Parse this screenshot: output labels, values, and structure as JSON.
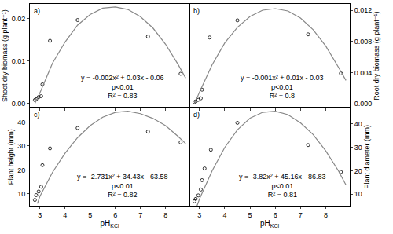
{
  "chart_data": [
    {
      "type": "scatter",
      "panel": "a)",
      "ylabel": "Shoot dry biomass (g plant⁻¹)",
      "xlim": [
        2.6,
        8.95
      ],
      "xticks": [
        3,
        4,
        5,
        6,
        7,
        8
      ],
      "tick_labels": "y",
      "ylim": [
        -0.001,
        0.0235
      ],
      "yticks": [
        {
          "value": 0,
          "label": "0.00"
        },
        0.01,
        0.02
      ],
      "grid": false,
      "annotations": [
        "y = -0.002x² + 0.03x - 0.06",
        "p<0.01",
        "R² = 0.83"
      ],
      "series": [
        {
          "type": "scatter",
          "marker": "open-circle",
          "color": "#000000",
          "x": [
            2.8,
            2.85,
            2.95,
            3.05,
            3.1,
            3.4,
            4.5,
            7.3,
            8.6
          ],
          "values": [
            0.0008,
            0.001,
            0.0015,
            0.0017,
            0.0045,
            0.0148,
            0.0197,
            0.0158,
            0.007
          ]
        },
        {
          "type": "line",
          "line_style": "solid",
          "color": "#888888",
          "x": [
            2.8,
            3,
            3.5,
            4,
            4.5,
            5,
            5.5,
            6,
            6.5,
            7,
            7.5,
            8,
            8.5,
            8.8
          ],
          "values": [
            0.0,
            0.0025,
            0.0095,
            0.0145,
            0.0185,
            0.021,
            0.0225,
            0.0228,
            0.0222,
            0.0205,
            0.0178,
            0.014,
            0.0092,
            0.006
          ]
        }
      ]
    },
    {
      "type": "scatter",
      "panel": "b)",
      "ylabel": "Root dry biomass (g plant⁻¹)",
      "xlim": [
        2.6,
        8.95
      ],
      "xticks": [
        3,
        4,
        5,
        6,
        7,
        8
      ],
      "tick_labels": "y",
      "ylim": [
        -0.0005,
        0.0128
      ],
      "yticks": [
        {
          "value": 0,
          "label": "0.000"
        },
        0.004,
        0.008,
        0.012
      ],
      "grid": false,
      "annotations": [
        "y = -0.001x² + 0.01x - 0.03",
        "p<0.01",
        "R² = 0.8"
      ],
      "series": [
        {
          "type": "scatter",
          "marker": "open-circle",
          "color": "#000000",
          "x": [
            2.8,
            2.85,
            2.95,
            3.05,
            3.1,
            3.4,
            4.5,
            7.3,
            8.6
          ],
          "values": [
            0.0002,
            0.0003,
            0.0005,
            0.0007,
            0.0018,
            0.0085,
            0.0107,
            0.0089,
            0.0039
          ]
        },
        {
          "type": "line",
          "line_style": "solid",
          "color": "#888888",
          "x": [
            2.8,
            3,
            3.5,
            4,
            4.5,
            5,
            5.5,
            6,
            6.5,
            7,
            7.5,
            8,
            8.5,
            8.8
          ],
          "values": [
            0.0,
            0.0015,
            0.005,
            0.0078,
            0.0098,
            0.0112,
            0.012,
            0.0122,
            0.0119,
            0.011,
            0.0095,
            0.0074,
            0.0047,
            0.003
          ]
        }
      ]
    },
    {
      "type": "scatter",
      "panel": "c)",
      "ylabel": "Plant height (mm)",
      "xlabel": {
        "text": "pH",
        "subscript": "KCl"
      },
      "xlim": [
        2.6,
        8.95
      ],
      "xticks": [
        3,
        4,
        5,
        6,
        7,
        8
      ],
      "ylim": [
        5,
        46
      ],
      "yticks": [
        10,
        20,
        30,
        40
      ],
      "grid": false,
      "annotations": [
        "y = -2.731x² + 34.43x - 63.58",
        "p<0.01",
        "R² = 0.82"
      ],
      "series": [
        {
          "type": "scatter",
          "marker": "open-circle",
          "color": "#000000",
          "x": [
            2.8,
            2.85,
            2.95,
            3.05,
            3.1,
            3.4,
            4.5,
            7.3,
            8.6
          ],
          "values": [
            7.5,
            9.5,
            11,
            13,
            22,
            29,
            37.5,
            36,
            31.5
          ]
        },
        {
          "type": "line",
          "line_style": "solid",
          "color": "#888888",
          "x": [
            2.9,
            3,
            3.5,
            4,
            4.5,
            5,
            5.5,
            6,
            6.5,
            7,
            7.5,
            8,
            8.5,
            8.8
          ],
          "values": [
            6,
            9,
            19,
            27,
            33.5,
            38.5,
            42,
            44,
            44.5,
            43.5,
            41.5,
            38.5,
            34,
            31
          ]
        }
      ]
    },
    {
      "type": "scatter",
      "panel": "d)",
      "ylabel": "Plant diameter (mm)",
      "xlabel": {
        "text": "pH",
        "subscript": "KCl"
      },
      "xlim": [
        2.6,
        8.95
      ],
      "xticks": [
        3,
        4,
        5,
        6,
        7,
        8
      ],
      "ylim": [
        5,
        47
      ],
      "yticks": [
        10,
        20,
        30,
        40
      ],
      "grid": false,
      "annotations": [
        "y = -3.82x² + 45.16x - 86.83",
        "p<0.01",
        "R² = 0.81"
      ],
      "series": [
        {
          "type": "scatter",
          "marker": "open-circle",
          "color": "#000000",
          "x": [
            2.8,
            2.85,
            2.95,
            3.05,
            3.1,
            3.2,
            3.45,
            4.5,
            7.3,
            8.6
          ],
          "values": [
            7,
            8,
            9.5,
            12,
            16,
            21,
            29,
            40.5,
            31,
            19.5
          ]
        },
        {
          "type": "line",
          "line_style": "solid",
          "color": "#888888",
          "x": [
            2.9,
            3,
            3.5,
            4,
            4.5,
            5,
            5.5,
            6,
            6.5,
            7,
            7.5,
            8,
            8.5,
            8.8
          ],
          "values": [
            5,
            8,
            20,
            30,
            37.5,
            42.5,
            45,
            45.5,
            44,
            40.5,
            35.5,
            28.5,
            20,
            14
          ]
        }
      ]
    }
  ]
}
